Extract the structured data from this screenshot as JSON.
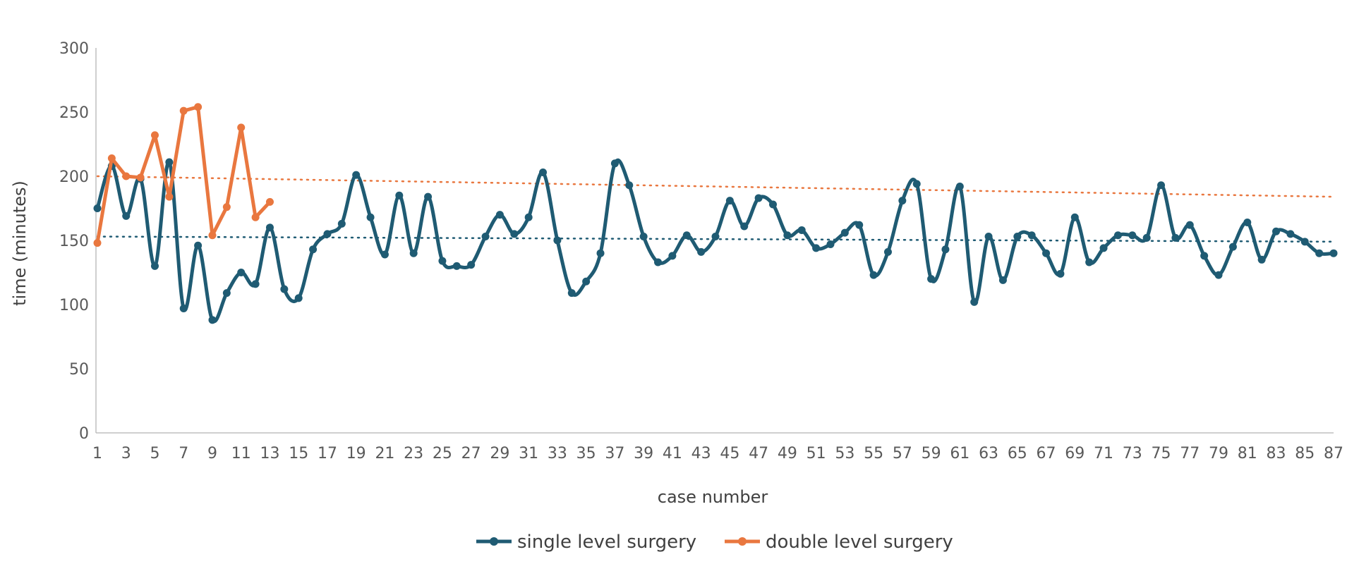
{
  "chart_data": {
    "type": "line",
    "xlabel": "case number",
    "ylabel": "time (minutes)",
    "ylim": [
      0,
      300
    ],
    "yticks": [
      0,
      50,
      100,
      150,
      200,
      250,
      300
    ],
    "x_tick_labels": [
      "1",
      "3",
      "5",
      "7",
      "9",
      "11",
      "13",
      "15",
      "17",
      "19",
      "21",
      "23",
      "25",
      "27",
      "29",
      "31",
      "33",
      "35",
      "37",
      "39",
      "41",
      "43",
      "45",
      "47",
      "49",
      "51",
      "53",
      "55",
      "57",
      "59",
      "61",
      "63",
      "65",
      "67",
      "69",
      "71",
      "73",
      "75",
      "77",
      "79",
      "81",
      "83",
      "85",
      "87"
    ],
    "grid": false,
    "legend_position": "bottom",
    "series": [
      {
        "name": "single level surgery",
        "color": "#1f5b73",
        "x": [
          1,
          2,
          3,
          4,
          5,
          6,
          7,
          8,
          9,
          10,
          11,
          12,
          13,
          14,
          15,
          16,
          17,
          18,
          19,
          20,
          21,
          22,
          23,
          24,
          25,
          26,
          27,
          28,
          29,
          30,
          31,
          32,
          33,
          34,
          35,
          36,
          37,
          38,
          39,
          40,
          41,
          42,
          43,
          44,
          45,
          46,
          47,
          48,
          49,
          50,
          51,
          52,
          53,
          54,
          55,
          56,
          57,
          58,
          59,
          60,
          61,
          62,
          63,
          64,
          65,
          66,
          67,
          68,
          69,
          70,
          71,
          72,
          73,
          74,
          75,
          76,
          77,
          78,
          79,
          80,
          81,
          82,
          83,
          84,
          85,
          86,
          87
        ],
        "values": [
          175,
          208,
          169,
          198,
          130,
          211,
          97,
          146,
          88,
          109,
          125,
          116,
          160,
          112,
          105,
          143,
          155,
          163,
          201,
          168,
          139,
          185,
          140,
          184,
          134,
          130,
          131,
          153,
          170,
          155,
          168,
          203,
          150,
          109,
          118,
          140,
          210,
          193,
          153,
          133,
          138,
          154,
          141,
          153,
          181,
          161,
          183,
          178,
          154,
          158,
          144,
          147,
          156,
          162,
          123,
          141,
          181,
          194,
          120,
          143,
          192,
          102,
          153,
          119,
          153,
          154,
          140,
          124,
          168,
          133,
          144,
          154,
          154,
          152,
          193,
          152,
          162,
          138,
          123,
          145,
          164,
          135,
          157,
          155,
          149,
          140,
          140
        ]
      },
      {
        "name": "double level surgery",
        "color": "#e9773f",
        "x": [
          1,
          2,
          3,
          4,
          5,
          6,
          7,
          8,
          9,
          10,
          11,
          12,
          13
        ],
        "values": [
          148,
          214,
          200,
          199,
          232,
          184,
          251,
          254,
          154,
          176,
          238,
          168,
          180
        ]
      }
    ],
    "trendlines": [
      {
        "series": "single level surgery",
        "color": "#1f5b73",
        "start": [
          1,
          153
        ],
        "end": [
          87,
          149
        ]
      },
      {
        "series": "double level surgery",
        "color": "#e9773f",
        "start": [
          1,
          200
        ],
        "end": [
          87,
          184
        ]
      }
    ]
  }
}
